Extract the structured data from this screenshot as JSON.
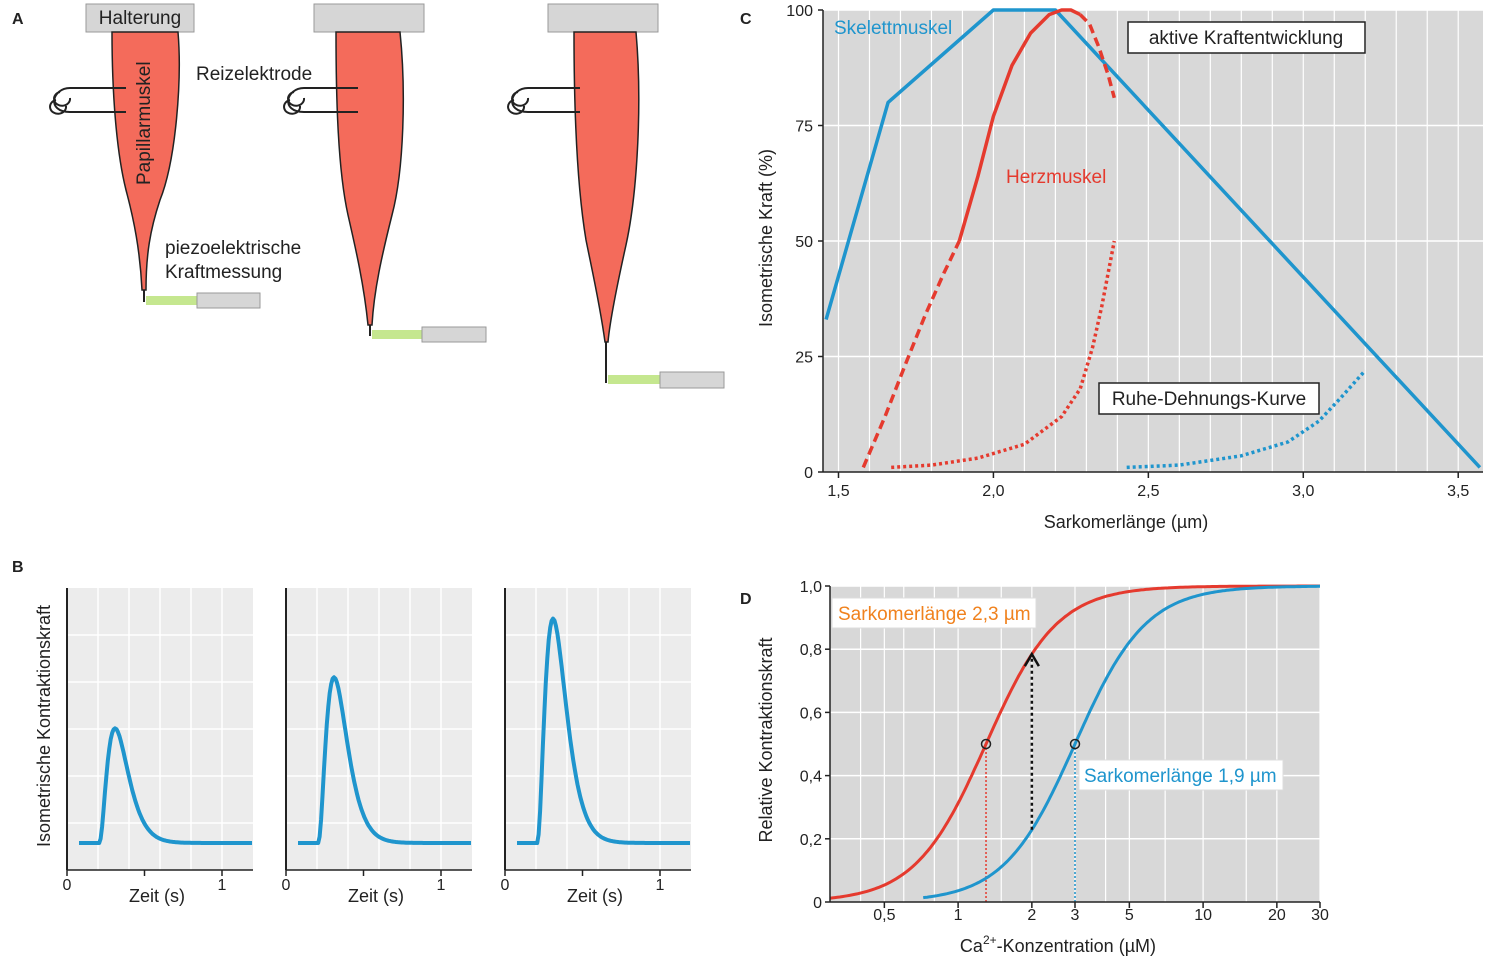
{
  "colors": {
    "skeletal": "#1f95cd",
    "cardiac": "#e53a2e",
    "muscle_fill": "#f46b5b",
    "holder": "#d6d6d6",
    "sensor": "#c5e78f",
    "panel_bg": "#d8d8d8",
    "panel_b_bg": "#ececec",
    "label_orange": "#f0821e"
  },
  "panels": {
    "a": {
      "letter": "A",
      "holder_label": "Halterung",
      "muscle_label": "Papillarmuskel",
      "electrode_label": "Reizelektrode",
      "sensor_label_1": "piezoelektrische",
      "sensor_label_2": "Kraftmessung"
    },
    "b": {
      "letter": "B",
      "ylabel": "Isometrische Kontraktionskraft",
      "xlabel": "Zeit (s)",
      "tick_0": "0",
      "tick_1": "1",
      "twitch_peaks": [
        0.45,
        0.65,
        0.88
      ]
    },
    "c": {
      "letter": "C",
      "ylabel": "Isometrische Kraft (%)",
      "xlabel": "Sarkomerlänge (µm)",
      "skeletal_label": "Skelettmuskel",
      "cardiac_label": "Herzmuskel",
      "active_box": "aktive Kraftentwicklung",
      "passive_box": "Ruhe-Dehnungs-Kurve"
    },
    "d": {
      "letter": "D",
      "ylabel": "Relative Kontraktionskraft",
      "xlabel_pre": "Ca",
      "xlabel_sup": "2+",
      "xlabel_post": "-Konzentration (µM)",
      "label_long": "Sarkomerlänge 2,3 µm",
      "label_short": "Sarkomerlänge 1,9 µm"
    }
  },
  "chart_data": [
    {
      "type": "line",
      "panel": "C",
      "xlim": [
        1.45,
        3.58
      ],
      "ylim": [
        0,
        100
      ],
      "x_ticks": [
        "1,5",
        "2,0",
        "2,5",
        "3,0",
        "3,5"
      ],
      "x_tick_values": [
        1.5,
        2.0,
        2.5,
        3.0,
        3.5
      ],
      "y_ticks": [
        "0",
        "25",
        "50",
        "75",
        "100"
      ],
      "y_tick_values": [
        0,
        25,
        50,
        75,
        100
      ],
      "grid": true,
      "series": [
        {
          "name": "Skelettmuskel",
          "style": "solid",
          "color": "#1f95cd",
          "x": [
            1.46,
            1.66,
            2.0,
            2.2,
            3.57
          ],
          "y": [
            33,
            80,
            100,
            100,
            1
          ]
        },
        {
          "name": "Herzmuskel",
          "style": "solid",
          "color": "#e53a2e",
          "x": [
            1.89,
            1.95,
            2.0,
            2.06,
            2.12,
            2.18,
            2.22,
            2.25,
            2.28
          ],
          "y": [
            50,
            64,
            77,
            88,
            95,
            99,
            100,
            100,
            99
          ]
        },
        {
          "name": "",
          "style": "dashed",
          "color": "#e53a2e",
          "x": [
            1.58,
            1.65,
            1.72,
            1.78,
            1.84,
            1.89
          ],
          "y": [
            1,
            12,
            24,
            34,
            43,
            50
          ]
        },
        {
          "name": "",
          "style": "dashed",
          "color": "#e53a2e",
          "x": [
            2.28,
            2.31,
            2.34,
            2.37,
            2.39
          ],
          "y": [
            99,
            97,
            92,
            86,
            81
          ]
        },
        {
          "name": "",
          "style": "dotted",
          "color": "#e53a2e",
          "x": [
            1.67,
            1.8,
            1.95,
            2.1,
            2.22,
            2.28,
            2.32,
            2.35,
            2.37,
            2.39
          ],
          "y": [
            1,
            1.5,
            3,
            6,
            12,
            18,
            27,
            36,
            43,
            50
          ]
        },
        {
          "name": "",
          "style": "dotted",
          "color": "#1f95cd",
          "x": [
            2.43,
            2.6,
            2.8,
            2.95,
            3.05,
            3.12,
            3.2
          ],
          "y": [
            1,
            1.5,
            3.5,
            6.5,
            11,
            16,
            22
          ]
        }
      ]
    },
    {
      "type": "line",
      "panel": "D",
      "xscale": "log",
      "xlim": [
        0.3,
        30
      ],
      "ylim": [
        0,
        1.0
      ],
      "x_ticks": [
        "0,5",
        "1",
        "2",
        "3",
        "5",
        "10",
        "20",
        "30"
      ],
      "x_tick_values": [
        0.5,
        1,
        2,
        3,
        5,
        10,
        20,
        30
      ],
      "y_ticks": [
        "0",
        "0,2",
        "0,4",
        "0,6",
        "0,8",
        "1,0"
      ],
      "y_tick_values": [
        0,
        0.2,
        0.4,
        0.6,
        0.8,
        1.0
      ],
      "grid": true,
      "series": [
        {
          "name": "Sarkomerlänge 2,3 µm",
          "color": "#e53a2e",
          "ec50": 1.3,
          "hill": 3.0
        },
        {
          "name": "Sarkomerlänge 1,9 µm",
          "color": "#1f95cd",
          "ec50": 3.0,
          "hill": 3.0
        }
      ]
    }
  ]
}
